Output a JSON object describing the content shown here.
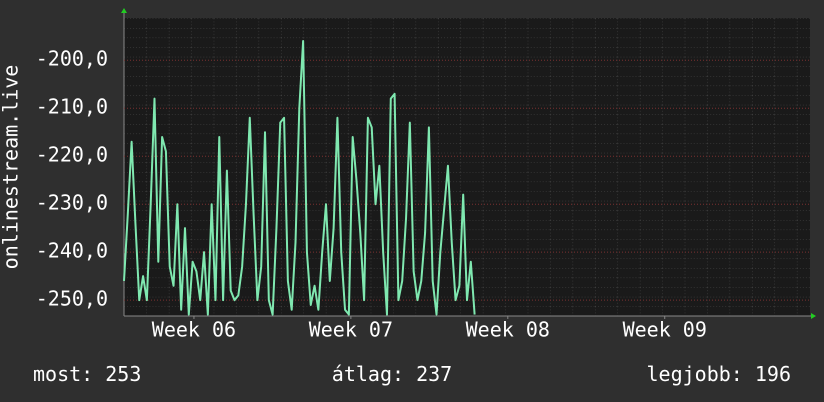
{
  "chart_data": {
    "type": "line",
    "y_label": "onlinestream.live",
    "xlim": [
      0,
      30.6
    ],
    "xticks": [
      {
        "value": 3.12,
        "label": "Week 06"
      },
      {
        "value": 10.12,
        "label": "Week 07"
      },
      {
        "value": 17.12,
        "label": "Week 08"
      },
      {
        "value": 24.12,
        "label": "Week 09"
      }
    ],
    "ylim": [
      -253.3,
      -191.2
    ],
    "yticks": [
      {
        "value": -250,
        "label": "-250,0"
      },
      {
        "value": -240,
        "label": "-240,0"
      },
      {
        "value": -230,
        "label": "-230,0"
      },
      {
        "value": -220,
        "label": "-220,0"
      },
      {
        "value": -210,
        "label": "-210,0"
      },
      {
        "value": -200,
        "label": "-200,0"
      }
    ],
    "grid": true,
    "x": [
      0,
      0.17,
      0.34,
      0.51,
      0.68,
      0.85,
      1.02,
      1.19,
      1.36,
      1.53,
      1.7,
      1.87,
      2.04,
      2.21,
      2.38,
      2.55,
      2.72,
      2.89,
      3.06,
      3.23,
      3.4,
      3.57,
      3.74,
      3.91,
      4.08,
      4.25,
      4.42,
      4.59,
      4.76,
      4.93,
      5.1,
      5.27,
      5.44,
      5.61,
      5.78,
      5.95,
      6.12,
      6.29,
      6.46,
      6.63,
      6.8,
      6.97,
      7.14,
      7.31,
      7.48,
      7.65,
      7.82,
      7.99,
      8.16,
      8.33,
      8.5,
      8.67,
      8.84,
      9.01,
      9.18,
      9.35,
      9.52,
      9.69,
      9.86,
      10.03,
      10.2,
      10.37,
      10.54,
      10.71,
      10.88,
      11.05,
      11.22,
      11.39,
      11.56,
      11.73,
      11.9,
      12.07,
      12.24,
      12.41,
      12.58,
      12.75,
      12.92,
      13.09,
      13.26,
      13.43,
      13.6,
      13.77,
      13.94,
      14.11,
      14.28,
      14.45,
      14.62,
      14.79,
      14.96,
      15.13,
      15.3,
      15.47,
      15.64
    ],
    "series": [
      {
        "color": "#7fe8b0",
        "values": [
          -246,
          -232,
          -217,
          -234,
          -250,
          -245,
          -250,
          -230,
          -208,
          -242,
          -216,
          -219,
          -243,
          -247,
          -230,
          -252,
          -235,
          -253,
          -242,
          -244,
          -250,
          -240,
          -253,
          -230,
          -250,
          -216,
          -250,
          -223,
          -248,
          -250,
          -249,
          -243,
          -230,
          -212,
          -232,
          -250,
          -243,
          -215,
          -250,
          -253,
          -235,
          -213,
          -212,
          -246,
          -252,
          -238,
          -210,
          -196,
          -240,
          -251,
          -247,
          -252,
          -240,
          -230,
          -246,
          -235,
          -212,
          -240,
          -252,
          -253,
          -216,
          -225,
          -236,
          -250,
          -212,
          -214,
          -230,
          -222,
          -240,
          -253,
          -208,
          -207,
          -250,
          -246,
          -233,
          -213,
          -244,
          -250,
          -246,
          -236,
          -214,
          -246,
          -253,
          -240,
          -231,
          -222,
          -238,
          -250,
          -247,
          -228,
          -250,
          -242,
          -253
        ]
      }
    ],
    "stats": [
      {
        "label": "most:",
        "value": 253
      },
      {
        "label": "átlag:",
        "value": 237
      },
      {
        "label": "legjobb:",
        "value": 196
      }
    ]
  }
}
